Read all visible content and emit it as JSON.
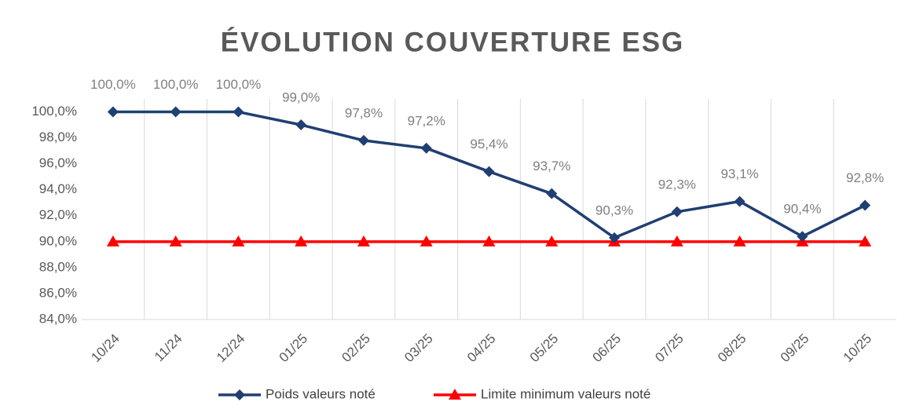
{
  "chart_data": {
    "type": "line",
    "title": "ÉVOLUTION COUVERTURE ESG",
    "categories": [
      "10/24",
      "11/24",
      "12/24",
      "01/25",
      "02/25",
      "03/25",
      "04/25",
      "05/25",
      "06/25",
      "07/25",
      "08/25",
      "09/25",
      "10/25"
    ],
    "series": [
      {
        "name": "Poids valeurs noté",
        "color": "#203f72",
        "marker": "diamond",
        "values": [
          100,
          100,
          100,
          99,
          97.8,
          97.2,
          95.4,
          93.7,
          90.3,
          92.3,
          93.1,
          90.4,
          92.8
        ],
        "value_labels": [
          "100,0%",
          "100,0%",
          "100,0%",
          "99,0%",
          "97,8%",
          "97,2%",
          "95,4%",
          "93,7%",
          "90,3%",
          "92,3%",
          "93,1%",
          "90,4%",
          "92,8%"
        ]
      },
      {
        "name": "Limite minimum valeurs noté",
        "color": "#ff0000",
        "marker": "triangle",
        "values": [
          90,
          90,
          90,
          90,
          90,
          90,
          90,
          90,
          90,
          90,
          90,
          90,
          90
        ]
      }
    ],
    "ylim": [
      84,
      101
    ],
    "yticks": [
      {
        "value": 84,
        "label": "84,0%"
      },
      {
        "value": 86,
        "label": "86,0%"
      },
      {
        "value": 88,
        "label": "88,0%"
      },
      {
        "value": 90,
        "label": "90,0%"
      },
      {
        "value": 92,
        "label": "92,0%"
      },
      {
        "value": 94,
        "label": "94,0%"
      },
      {
        "value": 96,
        "label": "96,0%"
      },
      {
        "value": 98,
        "label": "98,0%"
      },
      {
        "value": 100,
        "label": "100,0%"
      }
    ],
    "xgrid": true,
    "legend": "bottom"
  }
}
